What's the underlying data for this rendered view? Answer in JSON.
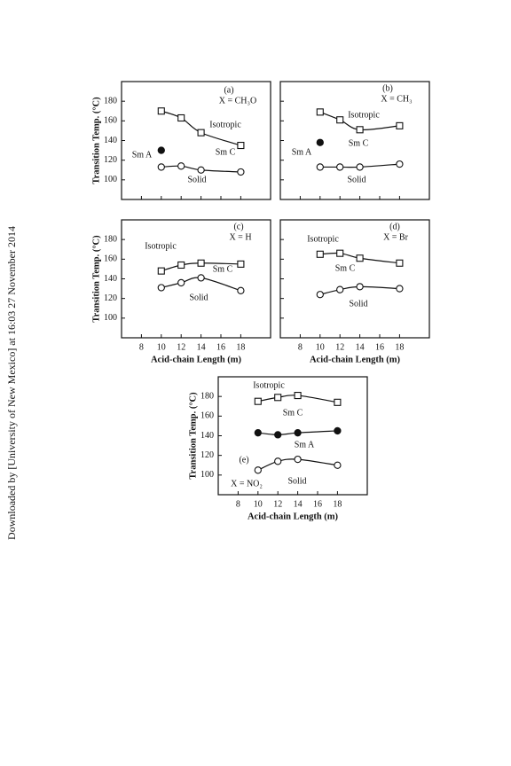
{
  "side_note": "Downloaded by [University of New Mexico] at 16:03 27 November 2014",
  "chart_data": [
    {
      "type": "line",
      "xlim": [
        6,
        21
      ],
      "ylim": [
        80,
        200
      ],
      "xticks": [
        8,
        10,
        12,
        14,
        16,
        18
      ],
      "yticks": [
        100,
        120,
        140,
        160,
        180
      ],
      "show_xtick_labels": false,
      "show_ytick_labels": true,
      "y_label": "Transition Temp. (°C)",
      "x": [
        10,
        12,
        14,
        18
      ],
      "series": [
        {
          "marker": "square",
          "color": "#111111",
          "values": [
            170,
            163,
            148,
            135
          ]
        },
        {
          "marker": "filled-circle",
          "color": "#111111",
          "values": [
            130,
            null,
            null,
            null
          ]
        },
        {
          "marker": "circle",
          "color": "#111111",
          "values": [
            113,
            114,
            110,
            108
          ]
        }
      ],
      "annotations": [
        "(a)",
        "X = CH₃O",
        "Isotropic",
        "Sm C",
        "Sm A",
        "Solid"
      ]
    },
    {
      "type": "line",
      "xlim": [
        6,
        21
      ],
      "ylim": [
        80,
        200
      ],
      "xticks": [
        8,
        10,
        12,
        14,
        16,
        18
      ],
      "yticks": [
        100,
        120,
        140,
        160,
        180
      ],
      "show_xtick_labels": false,
      "show_ytick_labels": false,
      "x": [
        10,
        12,
        14,
        18
      ],
      "series": [
        {
          "marker": "square",
          "color": "#111111",
          "values": [
            169,
            161,
            151,
            155
          ]
        },
        {
          "marker": "filled-circle",
          "color": "#111111",
          "values": [
            138,
            null,
            null,
            null
          ]
        },
        {
          "marker": "circle",
          "color": "#111111",
          "values": [
            113,
            113,
            113,
            116
          ]
        }
      ],
      "annotations": [
        "(b)",
        "X = CH₃",
        "Isotropic",
        "Sm C",
        "Sm A",
        "Solid"
      ]
    },
    {
      "type": "line",
      "xlim": [
        6,
        21
      ],
      "ylim": [
        80,
        200
      ],
      "xticks": [
        8,
        10,
        12,
        14,
        16,
        18
      ],
      "yticks": [
        100,
        120,
        140,
        160,
        180
      ],
      "show_xtick_labels": true,
      "show_ytick_labels": true,
      "y_label": "Transition Temp. (°C)",
      "x_label": "Acid-chain Length (m)",
      "x": [
        10,
        12,
        14,
        18
      ],
      "series": [
        {
          "marker": "square",
          "color": "#111111",
          "values": [
            148,
            154,
            156,
            155
          ]
        },
        {
          "marker": "circle",
          "color": "#111111",
          "values": [
            131,
            136,
            141,
            128
          ]
        }
      ],
      "annotations": [
        "(c)",
        "X = H",
        "Isotropic",
        "Sm C",
        "Solid"
      ]
    },
    {
      "type": "line",
      "xlim": [
        6,
        21
      ],
      "ylim": [
        80,
        200
      ],
      "xticks": [
        8,
        10,
        12,
        14,
        16,
        18
      ],
      "yticks": [
        100,
        120,
        140,
        160,
        180
      ],
      "show_xtick_labels": true,
      "show_ytick_labels": false,
      "x_label": "Acid-chain Length (m)",
      "x": [
        10,
        12,
        14,
        18
      ],
      "series": [
        {
          "marker": "square",
          "color": "#111111",
          "values": [
            165,
            166,
            161,
            156
          ]
        },
        {
          "marker": "circle",
          "color": "#111111",
          "values": [
            124,
            129,
            132,
            130
          ]
        }
      ],
      "annotations": [
        "(d)",
        "X = Br",
        "Isotropic",
        "Sm C",
        "Solid"
      ]
    },
    {
      "type": "line",
      "xlim": [
        6,
        21
      ],
      "ylim": [
        80,
        200
      ],
      "xticks": [
        8,
        10,
        12,
        14,
        16,
        18
      ],
      "yticks": [
        100,
        120,
        140,
        160,
        180
      ],
      "show_xtick_labels": true,
      "show_ytick_labels": true,
      "y_label": "Transition Temp. (°C)",
      "x_label": "Acid-chain Length (m)",
      "x": [
        10,
        12,
        14,
        18
      ],
      "series": [
        {
          "marker": "square",
          "color": "#111111",
          "values": [
            175,
            179,
            181,
            174
          ]
        },
        {
          "marker": "filled-circle",
          "color": "#111111",
          "values": [
            143,
            141,
            143,
            145
          ]
        },
        {
          "marker": "circle",
          "color": "#111111",
          "values": [
            105,
            114,
            116,
            110
          ]
        }
      ],
      "annotations": [
        "Isotropic",
        "Sm C",
        "Sm A",
        "(e)",
        "X = NO₂",
        "Solid"
      ]
    }
  ]
}
